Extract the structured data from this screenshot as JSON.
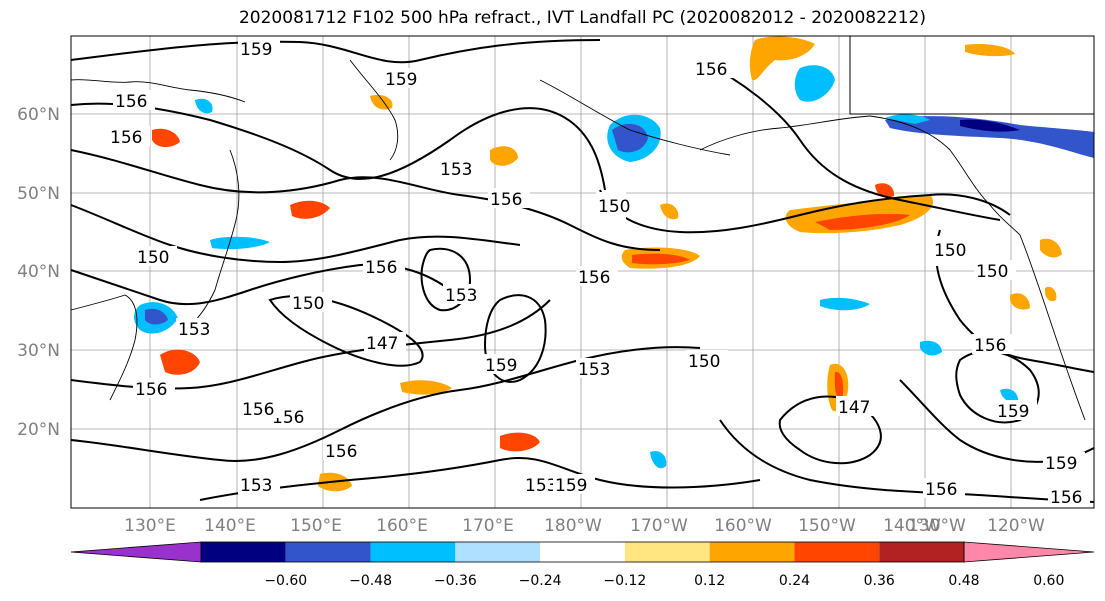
{
  "title": "2020081712 F102 500 hPa refract., IVT Landfall PC (2020082012 - 2020082212)",
  "lat_labels": [
    "60°N",
    "50°N",
    "40°N",
    "30°N",
    "20°N"
  ],
  "lon_labels": [
    "130°E",
    "140°E",
    "150°E",
    "160°E",
    "170°E",
    "180°W",
    "170°W",
    "160°W",
    "150°W",
    "140°W",
    "130°W",
    "120°W"
  ],
  "colorbar": {
    "colors": [
      "#9932cc",
      "#000080",
      "#3355cc",
      "#00bfff",
      "#b0e0ff",
      "#ffffff",
      "#ffe680",
      "#ffa500",
      "#ff4500",
      "#b22222",
      "#ff88aa"
    ],
    "tick_labels": [
      "−0.60",
      "−0.48",
      "−0.36",
      "−0.24",
      "−0.12",
      "0.12",
      "0.24",
      "0.36",
      "0.48",
      "0.60"
    ]
  },
  "contour_labels": {
    "c159": "159",
    "c156": "156",
    "c153": "153",
    "c150": "150",
    "c147": "147"
  }
}
